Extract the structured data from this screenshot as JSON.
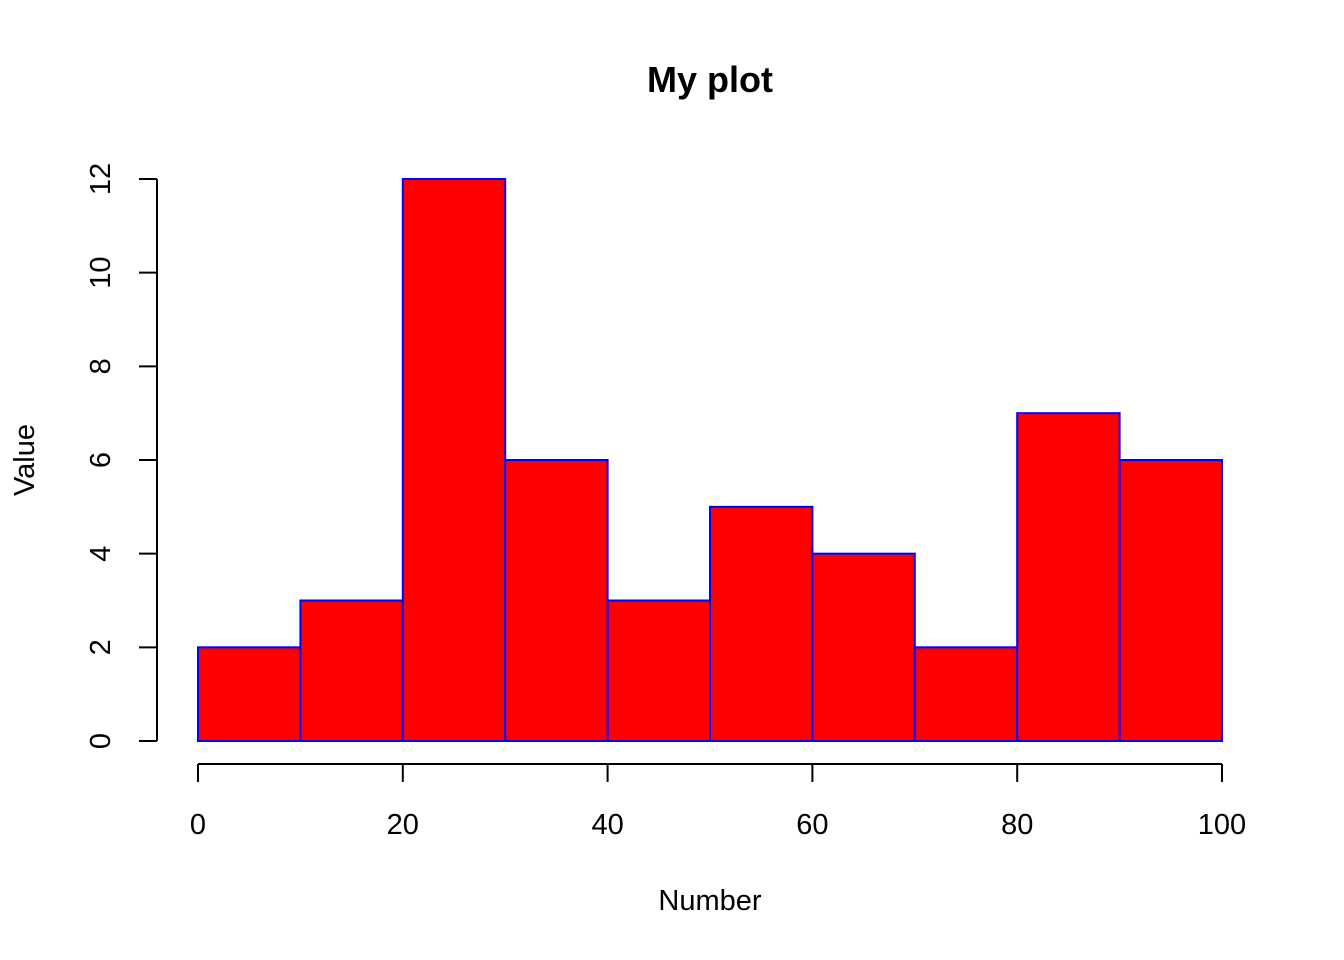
{
  "chart_data": {
    "type": "bar",
    "subtype": "histogram",
    "title": "My plot",
    "xlabel": "Number",
    "ylabel": "Value",
    "bins": [
      {
        "start": 0,
        "end": 10,
        "value": 2
      },
      {
        "start": 10,
        "end": 20,
        "value": 3
      },
      {
        "start": 20,
        "end": 30,
        "value": 12
      },
      {
        "start": 30,
        "end": 40,
        "value": 6
      },
      {
        "start": 40,
        "end": 50,
        "value": 3
      },
      {
        "start": 50,
        "end": 60,
        "value": 5
      },
      {
        "start": 60,
        "end": 70,
        "value": 4
      },
      {
        "start": 70,
        "end": 80,
        "value": 2
      },
      {
        "start": 80,
        "end": 90,
        "value": 7
      },
      {
        "start": 90,
        "end": 100,
        "value": 6
      }
    ],
    "xlim": [
      0,
      100
    ],
    "ylim": [
      0,
      12
    ],
    "x_ticks": [
      "0",
      "20",
      "40",
      "60",
      "80",
      "100"
    ],
    "y_ticks": [
      "0",
      "2",
      "4",
      "6",
      "8",
      "10",
      "12"
    ],
    "grid": false,
    "legend": "none",
    "colors": {
      "bar_fill": "#ff0000",
      "bar_border": "#0000ff",
      "axis": "#000000",
      "background": "#ffffff"
    }
  }
}
